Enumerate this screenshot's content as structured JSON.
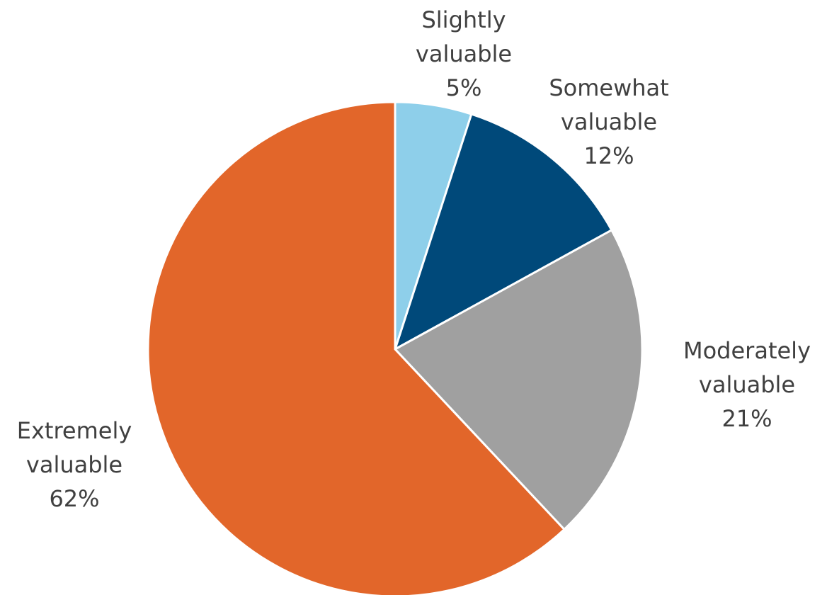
{
  "chart_data": {
    "type": "pie",
    "categories": [
      "Slightly valuable",
      "Somewhat valuable",
      "Moderately valuable",
      "Extremely valuable"
    ],
    "values": [
      5,
      12,
      21,
      62
    ],
    "value_labels": [
      "5%",
      "12%",
      "21%",
      "62%"
    ],
    "colors": [
      "#8ecfea",
      "#00497a",
      "#a0a0a0",
      "#e2662a"
    ]
  }
}
